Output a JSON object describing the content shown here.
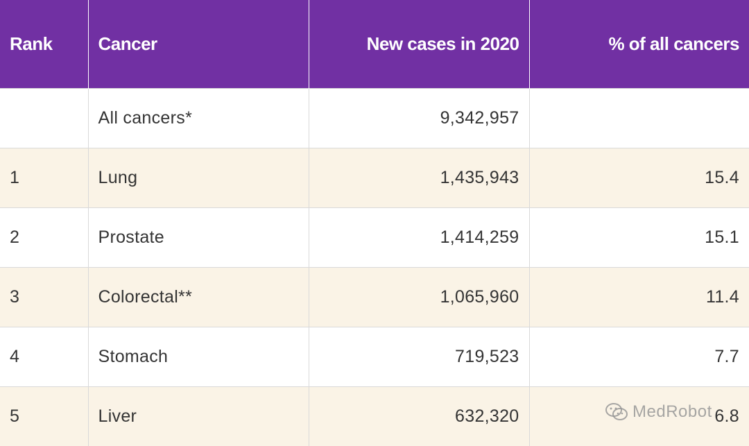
{
  "table": {
    "headers": [
      "Rank",
      "Cancer",
      "New cases in 2020",
      "% of all cancers"
    ],
    "rows": [
      {
        "rank": "",
        "cancer": "All cancers*",
        "cases": "9,342,957",
        "pct": ""
      },
      {
        "rank": "1",
        "cancer": "Lung",
        "cases": "1,435,943",
        "pct": "15.4"
      },
      {
        "rank": "2",
        "cancer": "Prostate",
        "cases": "1,414,259",
        "pct": "15.1"
      },
      {
        "rank": "3",
        "cancer": "Colorectal**",
        "cases": "1,065,960",
        "pct": "11.4"
      },
      {
        "rank": "4",
        "cancer": "Stomach",
        "cases": "719,523",
        "pct": "7.7"
      },
      {
        "rank": "5",
        "cancer": "Liver",
        "cases": "632,320",
        "pct": "6.8"
      }
    ]
  },
  "watermark": {
    "text": "MedRobot",
    "icon": "wechat-icon"
  },
  "colors": {
    "header_bg": "#7130a3",
    "alt_row_bg": "#faf3e6",
    "text": "#333333"
  }
}
